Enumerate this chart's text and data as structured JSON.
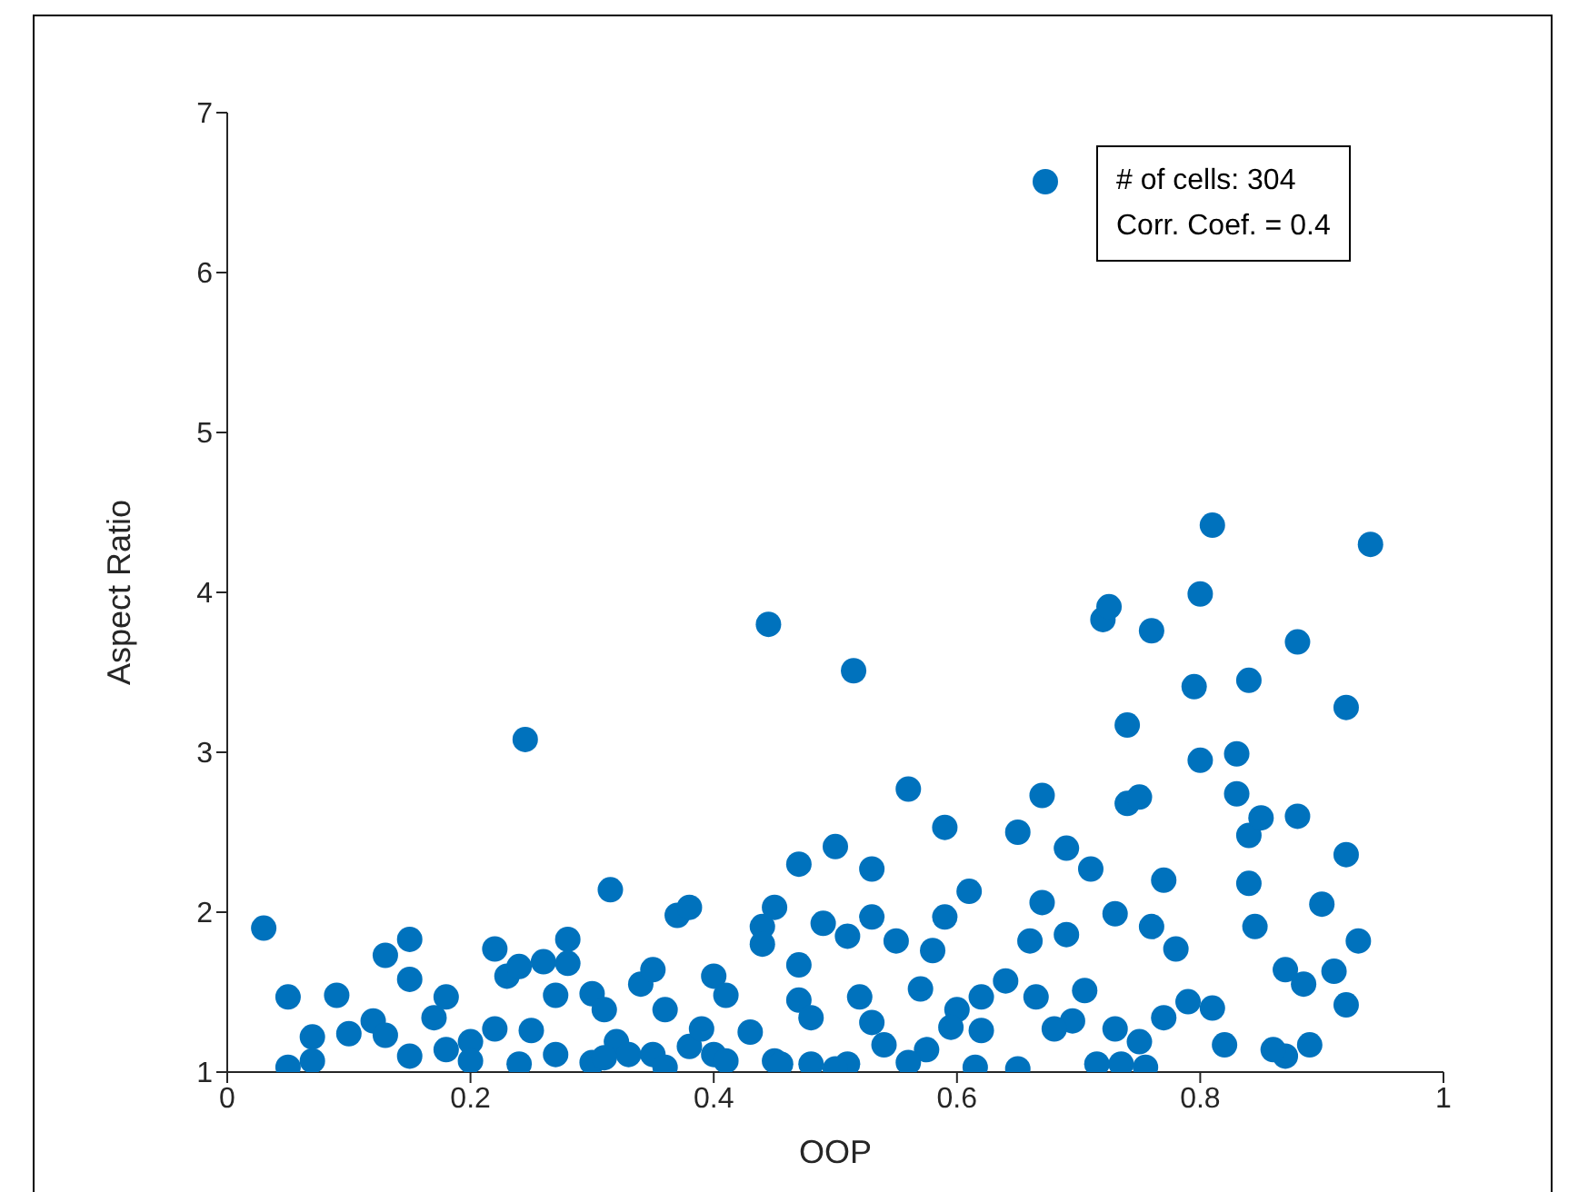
{
  "chart_data": {
    "type": "scatter",
    "xlabel": "OOP",
    "ylabel": "Aspect Ratio",
    "xlim": [
      0,
      1
    ],
    "xticks": [
      0,
      0.2,
      0.4,
      0.6,
      0.8,
      1
    ],
    "ylim": [
      1,
      7
    ],
    "yticks": [
      1,
      2,
      3,
      4,
      5,
      6,
      7
    ],
    "grid": false,
    "legend": "top right",
    "marker": "circle",
    "annotations": [
      "Corr. Coef. = 0.4"
    ],
    "series": [
      {
        "name": "# of cells: 304",
        "color": "#0072bd",
        "x": [
          0.03,
          0.05,
          0.05,
          0.07,
          0.09,
          0.07,
          0.1,
          0.12,
          0.13,
          0.15,
          0.15,
          0.13,
          0.15,
          0.17,
          0.18,
          0.18,
          0.2,
          0.22,
          0.22,
          0.23,
          0.24,
          0.245,
          0.26,
          0.27,
          0.28,
          0.28,
          0.25,
          0.27,
          0.3,
          0.315,
          0.31,
          0.3,
          0.32,
          0.34,
          0.35,
          0.36,
          0.35,
          0.37,
          0.38,
          0.38,
          0.39,
          0.4,
          0.4,
          0.41,
          0.43,
          0.44,
          0.45,
          0.445,
          0.44,
          0.45,
          0.47,
          0.47,
          0.47,
          0.48,
          0.49,
          0.5,
          0.51,
          0.515,
          0.52,
          0.53,
          0.53,
          0.55,
          0.56,
          0.57,
          0.58,
          0.59,
          0.59,
          0.6,
          0.61,
          0.62,
          0.64,
          0.65,
          0.66,
          0.67,
          0.67,
          0.69,
          0.69,
          0.71,
          0.72,
          0.725,
          0.73,
          0.74,
          0.74,
          0.75,
          0.76,
          0.76,
          0.77,
          0.78,
          0.795,
          0.8,
          0.8,
          0.81,
          0.83,
          0.83,
          0.84,
          0.84,
          0.85,
          0.88,
          0.88,
          0.9,
          0.92,
          0.92,
          0.93,
          0.94,
          0.92,
          0.91,
          0.885,
          0.89,
          0.87,
          0.87,
          0.86,
          0.845,
          0.84,
          0.82,
          0.81,
          0.79,
          0.77,
          0.75,
          0.755,
          0.735,
          0.715,
          0.73,
          0.705,
          0.695,
          0.68,
          0.665,
          0.65,
          0.62,
          0.615,
          0.595,
          0.575,
          0.56,
          0.54,
          0.53,
          0.51,
          0.5,
          0.455,
          0.48,
          0.41,
          0.36,
          0.33,
          0.24,
          0.2,
          0.31
        ],
        "values": [
          1.9,
          1.47,
          1.03,
          1.22,
          1.48,
          1.07,
          1.24,
          1.32,
          1.73,
          1.58,
          1.83,
          1.23,
          1.1,
          1.34,
          1.47,
          1.14,
          1.19,
          1.27,
          1.77,
          1.6,
          1.66,
          3.08,
          1.69,
          1.48,
          1.83,
          1.68,
          1.26,
          1.11,
          1.49,
          2.14,
          1.39,
          1.06,
          1.19,
          1.55,
          1.64,
          1.39,
          1.11,
          1.98,
          2.03,
          1.16,
          1.27,
          1.6,
          1.11,
          1.48,
          1.25,
          1.91,
          2.03,
          3.8,
          1.8,
          1.07,
          2.3,
          1.67,
          1.45,
          1.34,
          1.93,
          2.41,
          1.85,
          3.51,
          1.47,
          2.27,
          1.97,
          1.82,
          2.77,
          1.52,
          1.76,
          2.53,
          1.97,
          1.39,
          2.13,
          1.47,
          1.57,
          2.5,
          1.82,
          2.73,
          2.06,
          1.86,
          2.4,
          2.27,
          3.83,
          3.91,
          1.99,
          3.17,
          2.68,
          2.72,
          3.76,
          1.91,
          2.2,
          1.77,
          3.41,
          2.95,
          3.99,
          4.42,
          2.74,
          2.99,
          3.45,
          2.48,
          2.59,
          3.69,
          2.6,
          2.05,
          3.28,
          2.36,
          1.82,
          4.3,
          1.42,
          1.63,
          1.55,
          1.17,
          1.1,
          1.64,
          1.14,
          1.91,
          2.18,
          1.17,
          1.4,
          1.44,
          1.34,
          1.19,
          1.03,
          1.05,
          1.05,
          1.27,
          1.51,
          1.32,
          1.27,
          1.47,
          1.02,
          1.26,
          1.03,
          1.28,
          1.14,
          1.06,
          1.17,
          1.31,
          1.05,
          1.02,
          1.05,
          1.05,
          1.07,
          1.03,
          1.11,
          1.05,
          1.07,
          1.09
        ]
      }
    ]
  }
}
